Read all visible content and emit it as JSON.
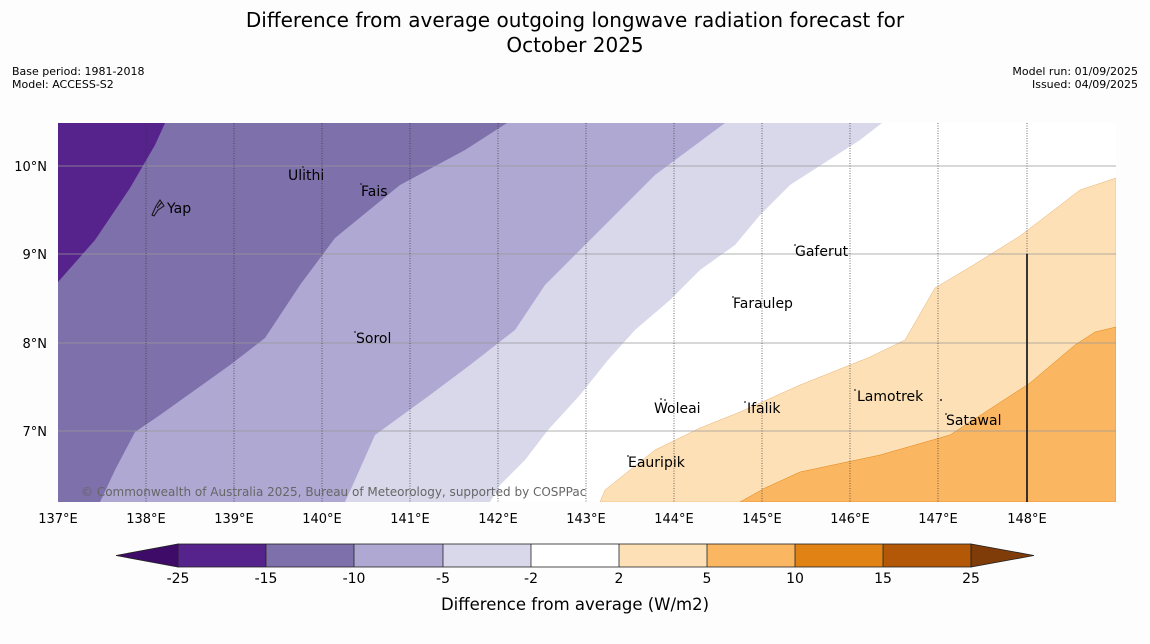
{
  "title": {
    "line1": "Difference from average outgoing longwave radiation forecast for",
    "line2": "October 2025"
  },
  "meta_left": {
    "base_period": "Base period: 1981-2018",
    "model": "Model: ACCESS-S2"
  },
  "meta_right": {
    "model_run": "Model run: 01/09/2025",
    "issued": "Issued: 04/09/2025"
  },
  "map": {
    "lon_ticks": [
      "137°E",
      "138°E",
      "139°E",
      "140°E",
      "141°E",
      "142°E",
      "143°E",
      "144°E",
      "145°E",
      "146°E",
      "147°E",
      "148°E"
    ],
    "lat_ticks": [
      "10°N",
      "9°N",
      "8°N",
      "7°N"
    ],
    "places": [
      "Ulithi",
      "Fais",
      "Yap",
      "Gaferut",
      "Faraulep",
      "Sorol",
      "Lamotrek",
      "Woleai",
      "Ifalik",
      "Satawal",
      "Eauripik"
    ],
    "copyright": "© Commonwealth of Australia 2025, Bureau of Meteorology, supported by COSPPac"
  },
  "colorbar": {
    "ticks": [
      "-25",
      "-15",
      "-10",
      "-5",
      "-2",
      "2",
      "5",
      "10",
      "15",
      "25"
    ],
    "label": "Difference from average (W/m2)",
    "colors": [
      "#3f0b68",
      "#55238b",
      "#7e70aa",
      "#afa8d2",
      "#d8d8ea",
      "#ffffff",
      "#fde0b5",
      "#fbb661",
      "#e08214",
      "#b35806",
      "#7f3b08"
    ]
  }
}
